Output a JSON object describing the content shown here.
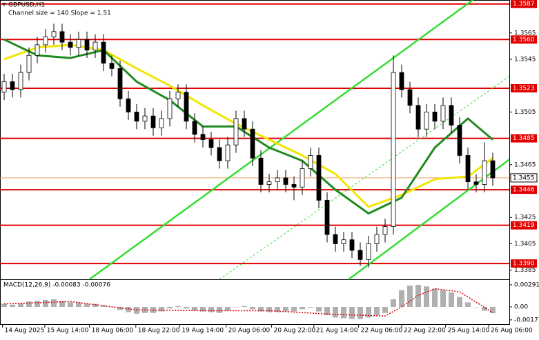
{
  "chart_data": {
    "type": "candlestick",
    "title": "GBPUSD,H1",
    "subtitle": "Channel size = 140 Slope = 1.51",
    "xlim": [
      -0.5,
      61
    ],
    "xticks": [
      {
        "value": -0.2,
        "label": "14 Aug 2025"
      },
      {
        "value": 4.9,
        "label": "15 Aug 14:00"
      },
      {
        "value": 10.3,
        "label": "18 Aug 06:00"
      },
      {
        "value": 15.9,
        "label": "18 Aug 22:00"
      },
      {
        "value": 21.2,
        "label": "19 Aug 14:00"
      },
      {
        "value": 26.8,
        "label": "20 Aug 06:00"
      },
      {
        "value": 32.3,
        "label": "20 Aug 22:00"
      },
      {
        "value": 37.4,
        "label": "21 Aug 14:00"
      },
      {
        "value": 42.8,
        "label": "22 Aug 06:00"
      },
      {
        "value": 48,
        "label": "22 Aug 22:00"
      },
      {
        "value": 53.3,
        "label": "25 Aug 14:00"
      },
      {
        "value": 58.5,
        "label": "26 Aug 06:00"
      }
    ],
    "ylim": [
      1.3378,
      1.359
    ],
    "yticks": [
      1.3565,
      1.3545,
      1.3505,
      1.3465,
      1.3425,
      1.3405,
      1.3385
    ],
    "candle_color": "#000000",
    "open": [
      1.352,
      1.3528,
      1.3522,
      1.3535,
      1.3548,
      1.3556,
      1.3562,
      1.3566,
      1.3558,
      1.3554,
      1.356,
      1.3552,
      1.3558,
      1.3542,
      1.3538,
      1.3515,
      1.3505,
      1.3498,
      1.3502,
      1.3493,
      1.35,
      1.3515,
      1.352,
      1.3498,
      1.3488,
      1.3484,
      1.3478,
      1.3468,
      1.348,
      1.35,
      1.3492,
      1.347,
      1.345,
      1.3452,
      1.3455,
      1.345,
      1.3448,
      1.3462,
      1.3472,
      1.3438,
      1.3412,
      1.3405,
      1.3408,
      1.34,
      1.3393,
      1.3405,
      1.3412,
      1.3418,
      1.3535,
      1.3522,
      1.351,
      1.3492,
      1.3505,
      1.3498,
      1.351,
      1.3495,
      1.3472,
      1.3452,
      1.345,
      1.3468
    ],
    "high": [
      1.3534,
      1.3534,
      1.3541,
      1.3554,
      1.3562,
      1.3568,
      1.3572,
      1.3572,
      1.3564,
      1.3566,
      1.3566,
      1.3564,
      1.3564,
      1.3548,
      1.3544,
      1.3521,
      1.3511,
      1.3508,
      1.3508,
      1.3506,
      1.3521,
      1.3526,
      1.3526,
      1.3504,
      1.3494,
      1.349,
      1.3484,
      1.3486,
      1.3506,
      1.3506,
      1.3498,
      1.3476,
      1.3458,
      1.3461,
      1.3461,
      1.3456,
      1.3468,
      1.3478,
      1.3478,
      1.3444,
      1.3418,
      1.3414,
      1.3414,
      1.3406,
      1.3411,
      1.3418,
      1.3424,
      1.3548,
      1.3541,
      1.3528,
      1.3516,
      1.3511,
      1.3511,
      1.3516,
      1.3516,
      1.3501,
      1.3478,
      1.3458,
      1.3482,
      1.3474
    ],
    "low": [
      1.3514,
      1.3516,
      1.3516,
      1.3529,
      1.3542,
      1.355,
      1.3556,
      1.3552,
      1.3548,
      1.3548,
      1.3546,
      1.3546,
      1.3536,
      1.3532,
      1.3509,
      1.3499,
      1.3492,
      1.3492,
      1.3487,
      1.3487,
      1.3494,
      1.3509,
      1.3492,
      1.3482,
      1.3478,
      1.3472,
      1.3462,
      1.3462,
      1.3474,
      1.3486,
      1.3464,
      1.3444,
      1.3444,
      1.3446,
      1.3444,
      1.3438,
      1.3442,
      1.3456,
      1.3432,
      1.3406,
      1.3399,
      1.3399,
      1.3394,
      1.3388,
      1.3387,
      1.3399,
      1.3406,
      1.3412,
      1.3516,
      1.3504,
      1.3486,
      1.3486,
      1.3492,
      1.3492,
      1.3489,
      1.3466,
      1.3446,
      1.3444,
      1.3444,
      1.3449
    ],
    "close": [
      1.3528,
      1.3522,
      1.3535,
      1.3548,
      1.3556,
      1.3562,
      1.3566,
      1.3558,
      1.3554,
      1.356,
      1.3552,
      1.3558,
      1.3542,
      1.3538,
      1.3515,
      1.3505,
      1.3498,
      1.3502,
      1.3493,
      1.35,
      1.3515,
      1.352,
      1.3498,
      1.3488,
      1.3484,
      1.3478,
      1.3468,
      1.348,
      1.35,
      1.3492,
      1.347,
      1.345,
      1.3452,
      1.3455,
      1.345,
      1.3448,
      1.3462,
      1.3472,
      1.3438,
      1.3412,
      1.3405,
      1.3408,
      1.34,
      1.3393,
      1.3405,
      1.3412,
      1.3418,
      1.3535,
      1.3522,
      1.351,
      1.3492,
      1.3505,
      1.3498,
      1.351,
      1.3495,
      1.3472,
      1.3452,
      1.345,
      1.3468,
      1.3455
    ],
    "moving_averages": [
      {
        "color": "#f2e600",
        "x": [
          0,
          4,
          8,
          12,
          16,
          20,
          24,
          28,
          32,
          36,
          40,
          44,
          48,
          52,
          56,
          59
        ],
        "values": [
          1.3545,
          1.3554,
          1.3556,
          1.3552,
          1.3538,
          1.3525,
          1.351,
          1.3496,
          1.3484,
          1.3472,
          1.3458,
          1.3433,
          1.3442,
          1.3454,
          1.3456,
          1.347
        ]
      },
      {
        "color": "#1f8a1f",
        "x": [
          0,
          4,
          8,
          12,
          16,
          20,
          24,
          28,
          32,
          36,
          40,
          44,
          48,
          52,
          56,
          59
        ],
        "values": [
          1.356,
          1.3548,
          1.3546,
          1.3552,
          1.3528,
          1.3514,
          1.3494,
          1.3494,
          1.3478,
          1.3468,
          1.3446,
          1.3428,
          1.344,
          1.3478,
          1.35,
          1.3484
        ]
      }
    ],
    "channel_lines": [
      {
        "color": "#33dd33",
        "dashed": false,
        "x": [
          10.3,
          56.6
        ],
        "values": [
          1.3378,
          1.359
        ]
      },
      {
        "color": "#33dd33",
        "dashed": false,
        "x": [
          41.6,
          61
        ],
        "values": [
          1.3378,
          1.3469
        ]
      },
      {
        "color": "#33dd33",
        "dashed": true,
        "x": [
          26,
          61
        ],
        "values": [
          1.3378,
          1.3532
        ]
      }
    ],
    "levels": {
      "color": "#e00000",
      "values": [
        1.3587,
        {
          "value": 1.356,
          "label": "1.3560"
        },
        1.3523,
        1.3485,
        1.3446,
        1.3419,
        {
          "value": 1.339,
          "label": "1.3390"
        }
      ]
    },
    "current_price": {
      "value": 1.3455,
      "color": "#f0a060"
    },
    "macd": {
      "label": "MACD(12,26,9) -0.00083 -0.00076",
      "ylim": [
        -0.00227,
        0.00345
      ],
      "yticks": [
        0.00291,
        {
          "value": 0,
          "label": "0.00"
        },
        -0.00171
      ],
      "histogram_color": "#b0b0b0",
      "histogram": [
        0.0004,
        0.0003,
        0.0005,
        0.0007,
        0.0008,
        0.0009,
        0.001,
        0.0008,
        0.0006,
        0.0006,
        0.0004,
        0.0004,
        0.0002,
        0.0,
        -0.0004,
        -0.0007,
        -0.0009,
        -0.0008,
        -0.0008,
        -0.0006,
        -0.0002,
        0.0001,
        -0.0002,
        -0.0005,
        -0.0006,
        -0.0007,
        -0.0008,
        -0.0005,
        0.0,
        0.0001,
        -0.0003,
        -0.0006,
        -0.0007,
        -0.0007,
        -0.0006,
        -0.0006,
        -0.0003,
        -0.0001,
        -0.0006,
        -0.0011,
        -0.0014,
        -0.0015,
        -0.0016,
        -0.0016,
        -0.0014,
        -0.0011,
        -0.0008,
        0.001,
        0.0022,
        0.0028,
        0.0029,
        0.0027,
        0.0024,
        0.0022,
        0.0019,
        0.0013,
        0.0006,
        0.0,
        -0.0005,
        -0.00083
      ],
      "signal": {
        "color": "#e00000",
        "x": [
          0,
          8,
          16,
          24,
          32,
          40,
          46,
          48,
          50,
          52,
          55,
          59
        ],
        "values": [
          0.0004,
          0.0007,
          -0.0004,
          -0.0005,
          -0.0005,
          -0.001,
          -0.0012,
          0.0,
          0.0015,
          0.0024,
          0.002,
          -0.00076
        ]
      }
    }
  }
}
